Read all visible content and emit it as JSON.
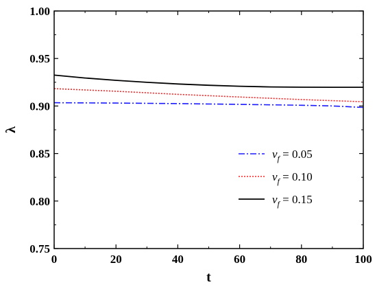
{
  "chart_data": {
    "type": "line",
    "xlabel": "t",
    "ylabel": "λ",
    "xlim": [
      0,
      100
    ],
    "ylim": [
      0.75,
      1.0
    ],
    "xticks": [
      "0",
      "20",
      "40",
      "60",
      "80",
      "100"
    ],
    "yticks": [
      "0.75",
      "0.80",
      "0.85",
      "0.90",
      "0.95",
      "1.00"
    ],
    "grid": false,
    "legend_position": "bottom-right",
    "series": [
      {
        "name": "v_f = 0.05",
        "legend_var": "v",
        "legend_sub": "f",
        "legend_value": " = 0.05",
        "color": "#1a1aff",
        "dash": "dashdot",
        "x": [
          0,
          20,
          40,
          60,
          80,
          90,
          100
        ],
        "y": [
          0.9035,
          0.9031,
          0.9025,
          0.9017,
          0.9008,
          0.9001,
          0.8985
        ]
      },
      {
        "name": "v_f = 0.10",
        "legend_var": "v",
        "legend_sub": "f",
        "legend_value": " = 0.10",
        "color": "#ff2020",
        "dash": "dotted",
        "x": [
          0,
          20,
          40,
          60,
          80,
          100
        ],
        "y": [
          0.9183,
          0.9155,
          0.9123,
          0.9095,
          0.9068,
          0.9045
        ]
      },
      {
        "name": "v_f = 0.15",
        "legend_var": "v",
        "legend_sub": "f",
        "legend_value": " = 0.15",
        "color": "#000000",
        "dash": "solid",
        "x": [
          0,
          10,
          20,
          30,
          40,
          50,
          60,
          70,
          80,
          90,
          100
        ],
        "y": [
          0.9325,
          0.9295,
          0.927,
          0.9249,
          0.9232,
          0.9218,
          0.9208,
          0.9201,
          0.9198,
          0.9197,
          0.9197
        ]
      }
    ]
  }
}
